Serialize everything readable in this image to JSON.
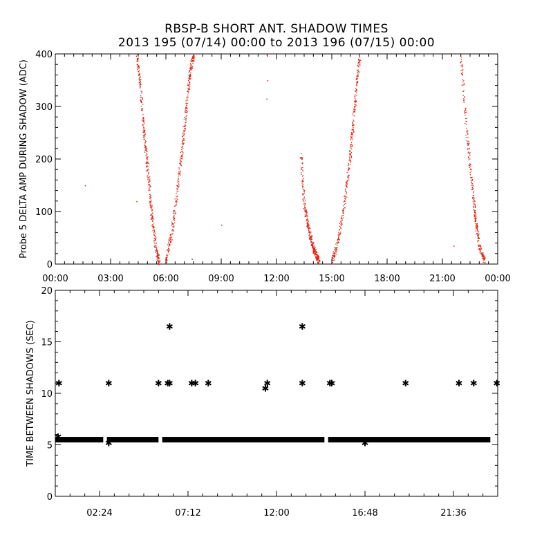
{
  "title_line1": "RBSP-B SHORT ANT. SHADOW TIMES",
  "title_line2": "2013 195 (07/14) 00:00 to 2013 196 (07/15) 00:00",
  "colors": {
    "top_points": "#e0200e",
    "bottom_points": "#000000",
    "axes": "#000000"
  },
  "chart_data": [
    {
      "type": "scatter",
      "ylabel": "Probe 5 DELTA AMP DURING SHADOW (ADC)",
      "xlim": [
        0,
        24
      ],
      "ylim": [
        0,
        400
      ],
      "x_ticks": [
        0,
        3,
        6,
        9,
        12,
        15,
        18,
        21,
        24
      ],
      "x_tick_labels": [
        "00:00",
        "03:00",
        "06:00",
        "09:00",
        "12:00",
        "15:00",
        "18:00",
        "21:00",
        "00:00"
      ],
      "y_ticks": [
        0,
        100,
        200,
        300,
        400
      ],
      "y_tick_labels": [
        "0",
        "100",
        "200",
        "300",
        "400"
      ],
      "curves": [
        {
          "x": [
            4.4,
            4.6,
            4.8,
            5.0,
            5.2,
            5.45,
            5.6
          ],
          "y": [
            400,
            340,
            250,
            180,
            100,
            30,
            5
          ]
        },
        {
          "x": [
            6.0,
            6.3,
            6.6,
            6.9,
            7.1,
            7.3,
            7.5
          ],
          "y": [
            10,
            60,
            140,
            230,
            300,
            370,
            400
          ]
        },
        {
          "x": [
            13.3,
            13.5,
            13.7,
            13.9,
            14.1,
            14.3
          ],
          "y": [
            210,
            110,
            70,
            40,
            20,
            5
          ]
        },
        {
          "x": [
            15.0,
            15.3,
            15.6,
            15.9,
            16.1,
            16.3,
            16.5
          ],
          "y": [
            5,
            40,
            100,
            180,
            250,
            330,
            400
          ]
        },
        {
          "x": [
            22.0,
            22.3,
            22.6,
            22.8,
            23.0,
            23.3
          ],
          "y": [
            390,
            250,
            150,
            80,
            30,
            5
          ]
        }
      ],
      "isolated_points": [
        {
          "x": 1.6,
          "y": 150
        },
        {
          "x": 9.0,
          "y": 75
        },
        {
          "x": 7.4,
          "y": 10
        },
        {
          "x": 11.45,
          "y": 400
        },
        {
          "x": 11.5,
          "y": 350
        },
        {
          "x": 11.45,
          "y": 315
        },
        {
          "x": 21.6,
          "y": 35
        },
        {
          "x": 4.4,
          "y": 120
        }
      ]
    },
    {
      "type": "scatter",
      "ylabel": "TIME BETWEEN SHADOWS (SEC)",
      "xlim": [
        0,
        24
      ],
      "ylim": [
        0,
        20
      ],
      "x_ticks": [
        2.4,
        7.2,
        12.0,
        16.8,
        21.6
      ],
      "x_tick_labels": [
        "02:24",
        "07:12",
        "12:00",
        "16:48",
        "21:36"
      ],
      "y_ticks": [
        0,
        5,
        10,
        15,
        20
      ],
      "y_tick_labels": [
        "0",
        "5",
        "10",
        "15",
        "20"
      ],
      "baseline_y": 5.5,
      "baseline_segments": [
        [
          0.0,
          2.6
        ],
        [
          2.8,
          5.6
        ],
        [
          5.8,
          14.6
        ],
        [
          14.8,
          23.6
        ]
      ],
      "points": [
        {
          "x": 0.2,
          "y": 11.0
        },
        {
          "x": 2.9,
          "y": 11.0
        },
        {
          "x": 5.6,
          "y": 11.0
        },
        {
          "x": 6.1,
          "y": 11.0
        },
        {
          "x": 6.2,
          "y": 11.0
        },
        {
          "x": 6.2,
          "y": 16.5
        },
        {
          "x": 7.4,
          "y": 11.0
        },
        {
          "x": 7.6,
          "y": 11.0
        },
        {
          "x": 8.3,
          "y": 11.0
        },
        {
          "x": 11.4,
          "y": 10.5
        },
        {
          "x": 11.5,
          "y": 11.0
        },
        {
          "x": 13.4,
          "y": 16.5
        },
        {
          "x": 13.4,
          "y": 11.0
        },
        {
          "x": 14.9,
          "y": 11.0
        },
        {
          "x": 15.0,
          "y": 11.0
        },
        {
          "x": 19.0,
          "y": 11.0
        },
        {
          "x": 21.9,
          "y": 11.0
        },
        {
          "x": 22.7,
          "y": 11.0
        },
        {
          "x": 23.95,
          "y": 11.0
        },
        {
          "x": 0.15,
          "y": 5.8
        },
        {
          "x": 2.9,
          "y": 5.2
        },
        {
          "x": 16.8,
          "y": 5.2
        }
      ]
    }
  ]
}
